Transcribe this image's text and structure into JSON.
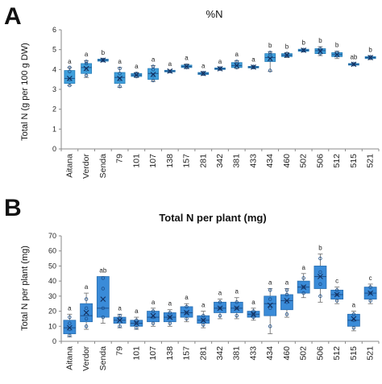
{
  "panels": {
    "a": {
      "letter": "A",
      "title": "%N"
    },
    "b": {
      "letter": "B",
      "title": "Total N per plant (mg)"
    }
  },
  "chart_data": [
    {
      "type": "box",
      "title": "%N",
      "ylabel": "Total N (g per 100 g DW)",
      "xlabel": "",
      "ylim": [
        0,
        6
      ],
      "yticks": [
        0,
        1,
        2,
        3,
        4,
        5,
        6
      ],
      "categories": [
        "Aitana",
        "Verdor",
        "Senda",
        "79",
        "101",
        "107",
        "138",
        "157",
        "281",
        "342",
        "381",
        "433",
        "434",
        "460",
        "502",
        "506",
        "512",
        "515",
        "521"
      ],
      "letters": [
        "a",
        "a",
        "b",
        "a",
        "a",
        "a",
        "a",
        "a",
        "a",
        "a",
        "a",
        "a",
        "b",
        "b",
        "b",
        "b",
        "b",
        "ab",
        "b"
      ],
      "boxes": [
        {
          "min": 3.2,
          "q1": 3.3,
          "median": 3.55,
          "q3": 3.95,
          "max": 4.1,
          "mean": 3.55,
          "points": [
            3.2,
            3.5,
            3.9,
            4.1
          ]
        },
        {
          "min": 3.6,
          "q1": 3.8,
          "median": 4.1,
          "q3": 4.3,
          "max": 4.45,
          "mean": 4.05,
          "points": [
            3.7,
            4.0,
            4.3,
            4.4
          ]
        },
        {
          "min": 4.4,
          "q1": 4.42,
          "median": 4.47,
          "q3": 4.52,
          "max": 4.55,
          "mean": 4.47,
          "points": [
            4.45,
            4.5
          ]
        },
        {
          "min": 3.1,
          "q1": 3.3,
          "median": 3.6,
          "q3": 3.85,
          "max": 4.1,
          "mean": 3.55,
          "points": [
            3.15,
            3.5,
            3.8,
            4.05
          ]
        },
        {
          "min": 3.6,
          "q1": 3.65,
          "median": 3.72,
          "q3": 3.8,
          "max": 3.85,
          "mean": 3.72,
          "points": [
            3.65,
            3.75,
            3.8
          ]
        },
        {
          "min": 3.4,
          "q1": 3.5,
          "median": 3.8,
          "q3": 4.05,
          "max": 4.2,
          "mean": 3.75,
          "points": [
            3.45,
            3.7,
            4.0,
            4.15
          ]
        },
        {
          "min": 3.85,
          "q1": 3.88,
          "median": 3.92,
          "q3": 3.96,
          "max": 3.98,
          "mean": 3.92,
          "points": [
            3.9
          ]
        },
        {
          "min": 4.05,
          "q1": 4.1,
          "median": 4.15,
          "q3": 4.22,
          "max": 4.28,
          "mean": 4.15,
          "points": [
            4.1,
            4.2
          ]
        },
        {
          "min": 3.7,
          "q1": 3.75,
          "median": 3.8,
          "q3": 3.85,
          "max": 3.88,
          "mean": 3.8,
          "points": [
            3.78,
            3.84
          ]
        },
        {
          "min": 3.98,
          "q1": 4.0,
          "median": 4.04,
          "q3": 4.08,
          "max": 4.1,
          "mean": 4.04,
          "points": [
            4.02,
            4.07
          ]
        },
        {
          "min": 4.05,
          "q1": 4.1,
          "median": 4.2,
          "q3": 4.35,
          "max": 4.45,
          "mean": 4.2,
          "points": [
            4.1,
            4.25,
            4.4
          ]
        },
        {
          "min": 4.05,
          "q1": 4.08,
          "median": 4.12,
          "q3": 4.16,
          "max": 4.2,
          "mean": 4.12,
          "points": [
            4.1,
            4.15
          ]
        },
        {
          "min": 3.9,
          "q1": 4.4,
          "median": 4.6,
          "q3": 4.8,
          "max": 4.9,
          "mean": 4.55,
          "points": [
            3.95,
            4.5,
            4.75,
            4.85
          ]
        },
        {
          "min": 4.6,
          "q1": 4.65,
          "median": 4.72,
          "q3": 4.8,
          "max": 4.85,
          "mean": 4.72,
          "points": [
            4.7,
            4.8
          ]
        },
        {
          "min": 4.88,
          "q1": 4.92,
          "median": 4.97,
          "q3": 5.02,
          "max": 5.05,
          "mean": 4.97,
          "points": [
            4.95,
            5.0
          ]
        },
        {
          "min": 4.7,
          "q1": 4.8,
          "median": 4.95,
          "q3": 5.05,
          "max": 5.15,
          "mean": 4.92,
          "points": [
            4.8,
            4.95,
            5.05
          ]
        },
        {
          "min": 4.55,
          "q1": 4.65,
          "median": 4.75,
          "q3": 4.85,
          "max": 4.92,
          "mean": 4.75,
          "points": [
            4.7,
            4.85
          ]
        },
        {
          "min": 4.2,
          "q1": 4.22,
          "median": 4.26,
          "q3": 4.3,
          "max": 4.32,
          "mean": 4.26,
          "points": [
            4.25,
            4.3
          ]
        },
        {
          "min": 4.5,
          "q1": 4.55,
          "median": 4.6,
          "q3": 4.65,
          "max": 4.68,
          "mean": 4.6,
          "points": [
            4.58,
            4.64
          ]
        }
      ]
    },
    {
      "type": "box",
      "title": "Total N per plant (mg)",
      "ylabel": "Total N per plant (mg)",
      "xlabel": "",
      "ylim": [
        0,
        70
      ],
      "yticks": [
        0,
        10,
        20,
        30,
        40,
        50,
        60,
        70
      ],
      "categories": [
        "Aitana",
        "Verdor",
        "Senda",
        "79",
        "101",
        "107",
        "138",
        "157",
        "281",
        "342",
        "381",
        "433",
        "434",
        "460",
        "502",
        "506",
        "512",
        "515",
        "521"
      ],
      "letters": [
        "a",
        "a",
        "ab",
        "a",
        "a",
        "a",
        "a",
        "a",
        "a",
        "a",
        "a",
        "a",
        "a",
        "a",
        "a",
        "b",
        "c",
        "a",
        "c"
      ],
      "boxes": [
        {
          "min": 3,
          "q1": 5,
          "median": 9,
          "q3": 14,
          "max": 18,
          "mean": 9,
          "points": [
            4,
            8,
            12,
            16
          ]
        },
        {
          "min": 8,
          "q1": 13,
          "median": 17,
          "q3": 25,
          "max": 32,
          "mean": 19,
          "points": [
            10,
            15,
            22,
            28
          ]
        },
        {
          "min": 12,
          "q1": 16,
          "median": 22,
          "q3": 43,
          "max": 43,
          "mean": 28,
          "points": [
            16,
            22,
            35,
            42
          ]
        },
        {
          "min": 9,
          "q1": 12,
          "median": 14,
          "q3": 16,
          "max": 18,
          "mean": 14,
          "points": [
            10,
            15,
            17
          ]
        },
        {
          "min": 8,
          "q1": 10,
          "median": 12,
          "q3": 14,
          "max": 16,
          "mean": 12,
          "points": [
            9,
            12,
            14
          ]
        },
        {
          "min": 10,
          "q1": 13,
          "median": 16,
          "q3": 20,
          "max": 22,
          "mean": 17,
          "points": [
            12,
            16,
            20
          ]
        },
        {
          "min": 10,
          "q1": 13,
          "median": 16,
          "q3": 19,
          "max": 21,
          "mean": 16,
          "points": [
            12,
            16,
            19
          ]
        },
        {
          "min": 13,
          "q1": 16,
          "median": 19,
          "q3": 23,
          "max": 25,
          "mean": 19,
          "points": [
            15,
            19,
            23
          ]
        },
        {
          "min": 9,
          "q1": 12,
          "median": 14,
          "q3": 17,
          "max": 20,
          "mean": 14,
          "points": [
            11,
            14,
            17
          ]
        },
        {
          "min": 15,
          "q1": 19,
          "median": 22,
          "q3": 26,
          "max": 28,
          "mean": 22,
          "points": [
            17,
            22,
            26
          ]
        },
        {
          "min": 15,
          "q1": 19,
          "median": 22,
          "q3": 26,
          "max": 29,
          "mean": 22,
          "points": [
            17,
            22,
            26
          ]
        },
        {
          "min": 14,
          "q1": 16,
          "median": 18,
          "q3": 20,
          "max": 22,
          "mean": 18,
          "points": [
            16,
            18,
            20
          ]
        },
        {
          "min": 5,
          "q1": 17,
          "median": 25,
          "q3": 30,
          "max": 35,
          "mean": 24,
          "points": [
            10,
            22,
            28,
            34
          ]
        },
        {
          "min": 16,
          "q1": 21,
          "median": 27,
          "q3": 31,
          "max": 35,
          "mean": 27,
          "points": [
            18,
            26,
            31,
            34
          ]
        },
        {
          "min": 29,
          "q1": 32,
          "median": 36,
          "q3": 40,
          "max": 45,
          "mean": 36,
          "points": [
            32,
            36,
            42
          ]
        },
        {
          "min": 26,
          "q1": 35,
          "median": 43,
          "q3": 50,
          "max": 58,
          "mean": 43,
          "points": [
            30,
            38,
            46,
            55
          ]
        },
        {
          "min": 25,
          "q1": 28,
          "median": 31,
          "q3": 34,
          "max": 36,
          "mean": 31,
          "points": [
            27,
            31,
            34
          ]
        },
        {
          "min": 7,
          "q1": 10,
          "median": 14,
          "q3": 18,
          "max": 20,
          "mean": 15,
          "points": [
            9,
            14,
            18
          ]
        },
        {
          "min": 25,
          "q1": 28,
          "median": 32,
          "q3": 36,
          "max": 38,
          "mean": 32,
          "points": [
            27,
            32,
            36
          ]
        }
      ]
    }
  ]
}
